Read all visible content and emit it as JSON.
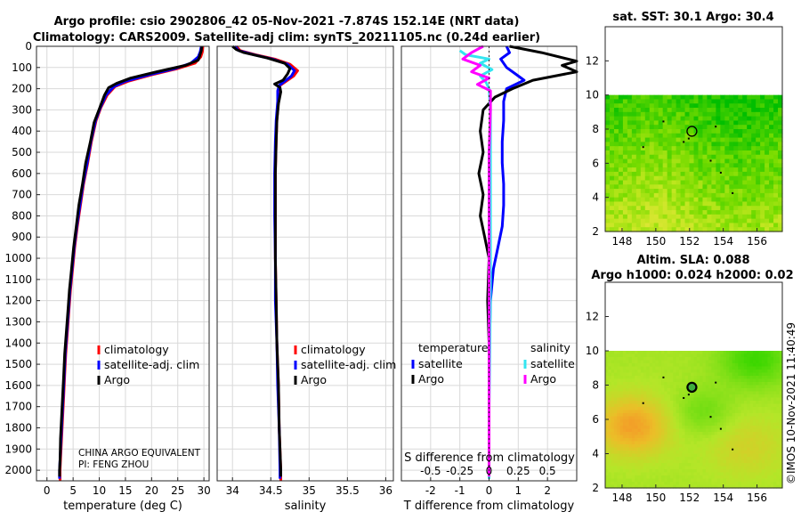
{
  "title_line1": "Argo profile: csio 2902806_42 05-Nov-2021 -7.874S 152.14E (NRT data)",
  "title_line2": "Climatology: CARS2009. Satellite-adj clim: synTS_20211105.nc (0.24d earlier)",
  "timestamp": "©IMOS 10-Nov-2021 11:40:49",
  "pi_line1": "CHINA ARGO EQUIVALENT",
  "pi_line2": "PI: FENG ZHOU",
  "colors": {
    "climatology": "#ff0000",
    "satellite": "#0000ff",
    "argo": "#000000",
    "sal_satellite": "#33e5f0",
    "sal_argo": "#ff00ff"
  },
  "chart_data": [
    {
      "type": "line",
      "name": "temperature",
      "xlabel": "temperature (deg C)",
      "ylabel": "",
      "xlim": [
        -2,
        31
      ],
      "ylim": [
        0,
        2050
      ],
      "xticks": [
        0,
        5,
        10,
        15,
        20,
        25,
        30
      ],
      "yticks": [
        0,
        100,
        200,
        300,
        400,
        500,
        600,
        700,
        800,
        900,
        1000,
        1100,
        1200,
        1300,
        1400,
        1500,
        1600,
        1700,
        1800,
        1900,
        2000
      ],
      "legend": [
        "climatology",
        "satellite-adj. clim",
        "Argo"
      ],
      "series": [
        {
          "name": "climatology",
          "points": [
            [
              29.8,
              0
            ],
            [
              29.7,
              25
            ],
            [
              29.4,
              50
            ],
            [
              28.3,
              80
            ],
            [
              25,
              105
            ],
            [
              20,
              135
            ],
            [
              15.5,
              165
            ],
            [
              13,
              190
            ],
            [
              11.5,
              230
            ],
            [
              10.3,
              290
            ],
            [
              9.4,
              350
            ],
            [
              8.5,
              450
            ],
            [
              7.8,
              550
            ],
            [
              7,
              650
            ],
            [
              6.4,
              750
            ],
            [
              5.8,
              850
            ],
            [
              5.3,
              950
            ],
            [
              4.9,
              1050
            ],
            [
              4.5,
              1150
            ],
            [
              4.2,
              1250
            ],
            [
              3.9,
              1350
            ],
            [
              3.6,
              1450
            ],
            [
              3.4,
              1550
            ],
            [
              3.2,
              1650
            ],
            [
              3.0,
              1750
            ],
            [
              2.8,
              1850
            ],
            [
              2.6,
              1950
            ],
            [
              2.5,
              2000
            ],
            [
              2.5,
              2050
            ]
          ]
        },
        {
          "name": "satellite-adj. clim",
          "points": [
            [
              29.5,
              0
            ],
            [
              29.3,
              25
            ],
            [
              28.9,
              50
            ],
            [
              27.5,
              80
            ],
            [
              24.5,
              105
            ],
            [
              19.5,
              135
            ],
            [
              15,
              165
            ],
            [
              12.8,
              190
            ],
            [
              11.3,
              230
            ],
            [
              10.2,
              290
            ],
            [
              9.3,
              350
            ],
            [
              8.4,
              450
            ],
            [
              7.7,
              550
            ],
            [
              6.9,
              650
            ],
            [
              6.3,
              750
            ],
            [
              5.7,
              850
            ],
            [
              5.2,
              950
            ],
            [
              4.8,
              1050
            ],
            [
              4.4,
              1150
            ],
            [
              4.1,
              1250
            ],
            [
              3.8,
              1350
            ],
            [
              3.5,
              1450
            ],
            [
              3.3,
              1550
            ],
            [
              3.1,
              1650
            ],
            [
              2.9,
              1750
            ],
            [
              2.7,
              1850
            ],
            [
              2.5,
              1950
            ],
            [
              2.4,
              2000
            ],
            [
              2.4,
              2040
            ]
          ]
        },
        {
          "name": "Argo",
          "points": [
            [
              29.6,
              0
            ],
            [
              29.5,
              20
            ],
            [
              29.2,
              45
            ],
            [
              28.9,
              65
            ],
            [
              26.5,
              90
            ],
            [
              21,
              120
            ],
            [
              16,
              150
            ],
            [
              13.3,
              175
            ],
            [
              11.8,
              195
            ],
            [
              11,
              230
            ],
            [
              10.1,
              290
            ],
            [
              9,
              360
            ],
            [
              8.3,
              450
            ],
            [
              7.4,
              550
            ],
            [
              6.8,
              650
            ],
            [
              6.1,
              750
            ],
            [
              5.6,
              850
            ],
            [
              5.1,
              950
            ],
            [
              4.7,
              1050
            ],
            [
              4.3,
              1150
            ],
            [
              4,
              1250
            ],
            [
              3.7,
              1350
            ],
            [
              3.4,
              1450
            ],
            [
              3.2,
              1550
            ],
            [
              3,
              1650
            ],
            [
              2.8,
              1750
            ],
            [
              2.6,
              1850
            ],
            [
              2.5,
              1950
            ],
            [
              2.4,
              2000
            ],
            [
              2.4,
              2030
            ]
          ]
        }
      ]
    },
    {
      "type": "line",
      "name": "salinity",
      "xlabel": "salinity",
      "xlim": [
        33.8,
        36.1
      ],
      "ylim": [
        0,
        2050
      ],
      "xticks": [
        34,
        34.5,
        35,
        35.5,
        36
      ],
      "legend": [
        "climatology",
        "satellite-adj. clim",
        "Argo"
      ],
      "series": [
        {
          "name": "climatology",
          "points": [
            [
              34.05,
              0
            ],
            [
              34.1,
              20
            ],
            [
              34.3,
              40
            ],
            [
              34.55,
              60
            ],
            [
              34.75,
              85
            ],
            [
              34.85,
              115
            ],
            [
              34.8,
              140
            ],
            [
              34.7,
              165
            ],
            [
              34.62,
              185
            ],
            [
              34.6,
              210
            ],
            [
              34.6,
              260
            ],
            [
              34.58,
              350
            ],
            [
              34.57,
              450
            ],
            [
              34.56,
              600
            ],
            [
              34.56,
              800
            ],
            [
              34.56,
              1000
            ],
            [
              34.57,
              1200
            ],
            [
              34.58,
              1400
            ],
            [
              34.6,
              1600
            ],
            [
              34.61,
              1800
            ],
            [
              34.63,
              2000
            ],
            [
              34.63,
              2050
            ]
          ]
        },
        {
          "name": "satellite-adj. clim",
          "points": [
            [
              34.03,
              0
            ],
            [
              34.08,
              20
            ],
            [
              34.28,
              40
            ],
            [
              34.52,
              60
            ],
            [
              34.72,
              85
            ],
            [
              34.81,
              115
            ],
            [
              34.77,
              140
            ],
            [
              34.68,
              165
            ],
            [
              34.61,
              185
            ],
            [
              34.59,
              210
            ],
            [
              34.59,
              260
            ],
            [
              34.57,
              350
            ],
            [
              34.56,
              450
            ],
            [
              34.55,
              600
            ],
            [
              34.55,
              800
            ],
            [
              34.56,
              1000
            ],
            [
              34.56,
              1200
            ],
            [
              34.58,
              1400
            ],
            [
              34.59,
              1600
            ],
            [
              34.61,
              1800
            ],
            [
              34.62,
              2000
            ],
            [
              34.62,
              2040
            ]
          ]
        },
        {
          "name": "Argo",
          "points": [
            [
              34.0,
              0
            ],
            [
              34.05,
              15
            ],
            [
              34.15,
              30
            ],
            [
              34.45,
              55
            ],
            [
              34.68,
              80
            ],
            [
              34.75,
              105
            ],
            [
              34.72,
              130
            ],
            [
              34.66,
              160
            ],
            [
              34.55,
              178
            ],
            [
              34.62,
              195
            ],
            [
              34.63,
              215
            ],
            [
              34.6,
              270
            ],
            [
              34.58,
              350
            ],
            [
              34.57,
              450
            ],
            [
              34.56,
              600
            ],
            [
              34.56,
              800
            ],
            [
              34.56,
              1000
            ],
            [
              34.57,
              1200
            ],
            [
              34.58,
              1400
            ],
            [
              34.6,
              1600
            ],
            [
              34.61,
              1800
            ],
            [
              34.63,
              2000
            ],
            [
              34.63,
              2030
            ]
          ]
        }
      ]
    },
    {
      "type": "line",
      "name": "difference",
      "xlabel": "T difference from climatology",
      "xlabel_top": "S difference from climatology",
      "xlim": [
        -3,
        3
      ],
      "ylim": [
        0,
        2050
      ],
      "xticks": [
        -2,
        -1,
        0,
        1,
        2
      ],
      "xticks_sal": [
        "-0.5",
        "-0.25",
        "0",
        "0.25",
        "0.5"
      ],
      "legend_headers": [
        "temperature",
        "salinity"
      ],
      "legend": [
        "satellite",
        "Argo",
        "satellite",
        "Argo"
      ],
      "series": [
        {
          "name": "temperature satellite",
          "points": [
            [
              0.6,
              0
            ],
            [
              0.7,
              30
            ],
            [
              0.4,
              60
            ],
            [
              0.6,
              100
            ],
            [
              0.9,
              130
            ],
            [
              1.2,
              160
            ],
            [
              0.6,
              200
            ],
            [
              0.5,
              260
            ],
            [
              0.5,
              350
            ],
            [
              0.45,
              450
            ],
            [
              0.45,
              550
            ],
            [
              0.5,
              650
            ],
            [
              0.5,
              750
            ],
            [
              0.45,
              850
            ],
            [
              0.3,
              950
            ],
            [
              0.15,
              1050
            ],
            [
              0.05,
              1200
            ],
            [
              0,
              1500
            ],
            [
              0,
              1800
            ],
            [
              0,
              2000
            ],
            [
              0,
              2040
            ]
          ]
        },
        {
          "name": "temperature Argo",
          "points": [
            [
              0.7,
              0
            ],
            [
              1.8,
              30
            ],
            [
              3,
              70
            ],
            [
              2.5,
              90
            ],
            [
              3,
              120
            ],
            [
              1.5,
              160
            ],
            [
              0.8,
              200
            ],
            [
              0.2,
              240
            ],
            [
              -0.2,
              300
            ],
            [
              -0.3,
              400
            ],
            [
              -0.2,
              500
            ],
            [
              -0.35,
              600
            ],
            [
              -0.2,
              700
            ],
            [
              -0.3,
              800
            ],
            [
              -0.15,
              900
            ],
            [
              0.0,
              1000
            ],
            [
              -0.05,
              1200
            ],
            [
              0,
              1400
            ],
            [
              0,
              1600
            ],
            [
              0,
              1800
            ],
            [
              0,
              2000
            ],
            [
              0,
              2030
            ]
          ]
        },
        {
          "name": "salinity satellite",
          "points": [
            [
              -1,
              20
            ],
            [
              -0.8,
              40
            ],
            [
              0.0,
              60
            ],
            [
              -0.3,
              80
            ],
            [
              0.1,
              110
            ],
            [
              -0.3,
              140
            ],
            [
              -0.1,
              170
            ],
            [
              0.0,
              200
            ],
            [
              0.05,
              300
            ],
            [
              0.05,
              500
            ],
            [
              0.05,
              800
            ],
            [
              0.05,
              1100
            ],
            [
              0.03,
              1400
            ],
            [
              0.0,
              1700
            ],
            [
              0.0,
              2000
            ],
            [
              0.0,
              2040
            ]
          ]
        },
        {
          "name": "salinity Argo",
          "points": [
            [
              -0.2,
              0
            ],
            [
              -0.6,
              30
            ],
            [
              -0.9,
              60
            ],
            [
              -0.3,
              90
            ],
            [
              -0.6,
              120
            ],
            [
              0.0,
              150
            ],
            [
              -0.4,
              180
            ],
            [
              0.05,
              210
            ],
            [
              0.05,
              300
            ],
            [
              0.0,
              500
            ],
            [
              0.0,
              800
            ],
            [
              0.0,
              1100
            ],
            [
              0.0,
              1400
            ],
            [
              0.0,
              1700
            ],
            [
              0.0,
              2000
            ],
            [
              0,
              2030
            ]
          ]
        }
      ]
    },
    {
      "type": "heatmap",
      "name": "sst_map",
      "title": "sat. SST: 30.1 Argo: 30.4",
      "xlim": [
        147,
        157.5
      ],
      "ylim": [
        2,
        14
      ],
      "data_ylim": [
        2,
        10
      ],
      "xticks": [
        148,
        150,
        152,
        154,
        156
      ],
      "yticks": [
        2,
        4,
        6,
        8,
        10,
        12
      ],
      "float_position": [
        152.14,
        7.874
      ]
    },
    {
      "type": "heatmap",
      "name": "sla_map",
      "title": "Altim. SLA: 0.088",
      "subtitle": "Argo h1000: 0.024 h2000: 0.02",
      "xlim": [
        147,
        157.5
      ],
      "ylim": [
        2,
        14
      ],
      "data_ylim": [
        2,
        10
      ],
      "xticks": [
        148,
        150,
        152,
        154,
        156
      ],
      "yticks": [
        2,
        4,
        6,
        8,
        10,
        12
      ],
      "float_position": [
        152.14,
        7.874
      ]
    }
  ]
}
